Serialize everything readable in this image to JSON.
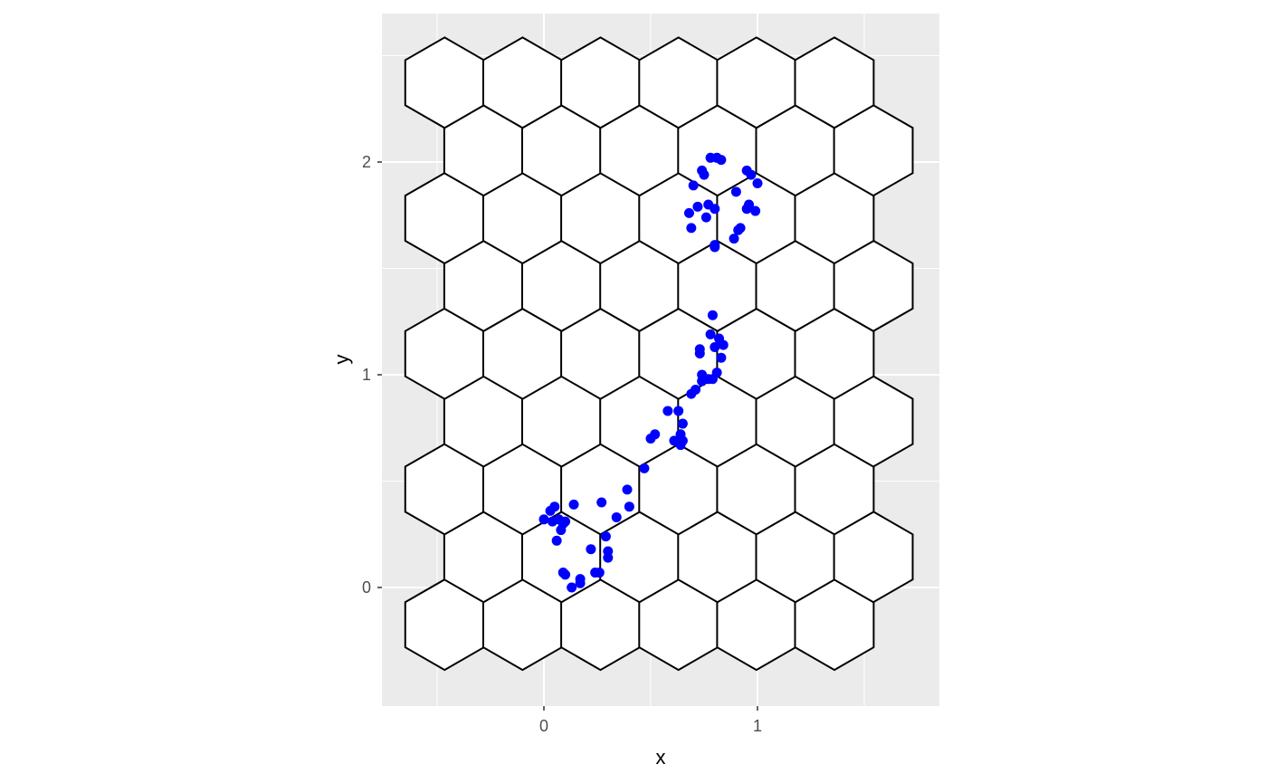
{
  "chart_data": {
    "type": "scatter",
    "title": "",
    "xlabel": "x",
    "ylabel": "y",
    "xlim": [
      -0.75,
      1.85
    ],
    "ylim": [
      -0.56,
      2.7
    ],
    "x_ticks": [
      0,
      1
    ],
    "x_tick_labels": [
      "0",
      "1"
    ],
    "y_ticks": [
      0,
      1,
      2
    ],
    "y_tick_labels": [
      "0",
      "1",
      "2"
    ],
    "x_minor_ticks": [
      -0.5,
      0.5,
      1.5
    ],
    "y_minor_ticks": [
      0.5,
      1.5,
      2.5
    ],
    "grid": true,
    "panel_background": "#ebebeb",
    "grid_color": "#ffffff",
    "point_color": "#0000ff",
    "hex_outline_color": "#000000",
    "hex_fill_color": "#ffffff",
    "hexgrid": {
      "dx": 0.365,
      "row_height": 0.3185,
      "hex_radius": 0.2125,
      "rows": [
        {
          "y": -0.175,
          "centers_x": [
            -0.465,
            -0.1,
            0.265,
            0.63,
            0.995,
            1.36
          ]
        },
        {
          "y": 0.1435,
          "centers_x": [
            -0.2825,
            0.0825,
            0.4475,
            0.8125,
            1.1775,
            1.5425
          ]
        },
        {
          "y": 0.462,
          "centers_x": [
            -0.465,
            -0.1,
            0.265,
            0.63,
            0.995,
            1.36
          ]
        },
        {
          "y": 0.7805,
          "centers_x": [
            -0.2825,
            0.0825,
            0.4475,
            0.8125,
            1.1775,
            1.5425
          ]
        },
        {
          "y": 1.099,
          "centers_x": [
            -0.465,
            -0.1,
            0.265,
            0.63,
            0.995,
            1.36
          ]
        },
        {
          "y": 1.4175,
          "centers_x": [
            -0.2825,
            0.0825,
            0.4475,
            0.8125,
            1.1775,
            1.5425
          ]
        },
        {
          "y": 1.736,
          "centers_x": [
            -0.465,
            -0.1,
            0.265,
            0.63,
            0.995,
            1.36
          ]
        },
        {
          "y": 2.0545,
          "centers_x": [
            -0.2825,
            0.0825,
            0.4475,
            0.8125,
            1.1775,
            1.5425
          ]
        },
        {
          "y": 2.373,
          "centers_x": [
            -0.465,
            -0.1,
            0.265,
            0.63,
            0.995,
            1.36
          ]
        }
      ]
    },
    "series": [
      {
        "x": [
          0.0,
          0.03,
          0.04,
          0.05,
          0.07,
          0.09,
          0.1,
          0.08,
          0.06,
          0.14,
          0.27,
          0.39,
          0.4,
          0.34,
          0.29,
          0.22,
          0.3,
          0.3,
          0.09,
          0.1,
          0.17,
          0.17,
          0.13,
          0.24,
          0.26
        ],
        "y": [
          0.32,
          0.36,
          0.31,
          0.38,
          0.32,
          0.3,
          0.31,
          0.27,
          0.22,
          0.39,
          0.4,
          0.46,
          0.38,
          0.33,
          0.24,
          0.18,
          0.17,
          0.14,
          0.07,
          0.06,
          0.04,
          0.02,
          0.0,
          0.07,
          0.07
        ]
      },
      {
        "x": [
          0.47,
          0.5,
          0.52,
          0.58,
          0.63,
          0.65,
          0.64,
          0.65,
          0.61,
          0.64,
          0.69,
          0.71,
          0.74,
          0.74,
          0.77,
          0.79,
          0.81,
          0.73,
          0.73,
          0.78,
          0.8,
          0.82,
          0.84,
          0.83,
          0.79
        ],
        "y": [
          0.56,
          0.7,
          0.72,
          0.83,
          0.83,
          0.77,
          0.72,
          0.69,
          0.69,
          0.67,
          0.91,
          0.93,
          0.97,
          1.0,
          0.98,
          0.98,
          1.01,
          1.1,
          1.12,
          1.19,
          1.13,
          1.17,
          1.14,
          1.08,
          1.28
        ]
      },
      {
        "x": [
          0.74,
          0.75,
          0.78,
          0.81,
          0.83,
          0.7,
          0.68,
          0.72,
          0.77,
          0.8,
          0.69,
          0.76,
          0.8,
          0.9,
          0.95,
          0.97,
          1.0,
          0.95,
          0.96,
          0.99,
          0.92,
          0.91,
          0.89,
          0.8
        ],
        "y": [
          1.96,
          1.94,
          2.02,
          2.02,
          2.01,
          1.89,
          1.76,
          1.79,
          1.8,
          1.78,
          1.69,
          1.74,
          1.61,
          1.86,
          1.96,
          1.94,
          1.9,
          1.78,
          1.8,
          1.77,
          1.69,
          1.68,
          1.64,
          1.6
        ]
      }
    ]
  }
}
